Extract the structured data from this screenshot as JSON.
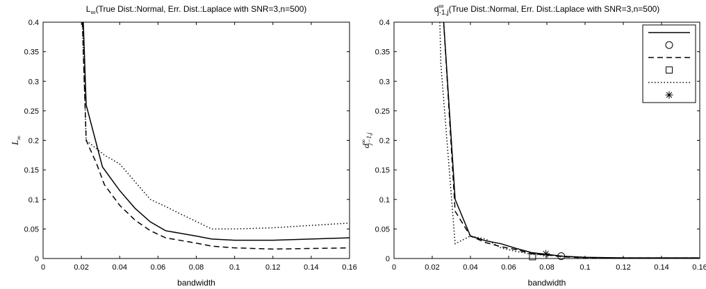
{
  "chart_data": [
    {
      "type": "line",
      "title": {
        "symbol": "L",
        "subscript": "∞",
        "text": "(True Dist.:Normal, Err. Dist.:Laplace with SNR=3,n=500)"
      },
      "y_label": {
        "symbol": "L",
        "subscript": "∞"
      },
      "x_label": "bandwidth",
      "xlim": [
        0,
        0.16
      ],
      "ylim": [
        0,
        0.4
      ],
      "xticks": [
        0,
        0.02,
        0.04,
        0.06,
        0.08,
        0.1,
        0.12,
        0.14,
        0.16
      ],
      "yticks": [
        0,
        0.05,
        0.1,
        0.15,
        0.2,
        0.25,
        0.3,
        0.35,
        0.4
      ],
      "series": [
        {
          "color": "#000000",
          "line": "solid",
          "marker": "none",
          "x": [
            0.021,
            0.0225,
            0.031,
            0.04,
            0.048,
            0.056,
            0.064,
            0.08,
            0.088,
            0.1,
            0.12,
            0.16
          ],
          "values": [
            0.4,
            0.26,
            0.155,
            0.115,
            0.085,
            0.062,
            0.047,
            0.038,
            0.033,
            0.031,
            0.031,
            0.035
          ]
        },
        {
          "color": "#000000",
          "line": "dashed",
          "marker": "none",
          "x": [
            0.0205,
            0.0225,
            0.028,
            0.032,
            0.04,
            0.048,
            0.056,
            0.064,
            0.08,
            0.088,
            0.1,
            0.12,
            0.16
          ],
          "values": [
            0.4,
            0.2,
            0.16,
            0.125,
            0.09,
            0.065,
            0.047,
            0.035,
            0.026,
            0.021,
            0.018,
            0.016,
            0.018
          ]
        },
        {
          "color": "#000000",
          "line": "dotted",
          "marker": "none",
          "x": [
            0.0205,
            0.0225,
            0.032,
            0.04,
            0.048,
            0.056,
            0.064,
            0.072,
            0.088,
            0.1,
            0.12,
            0.16
          ],
          "values": [
            0.4,
            0.2,
            0.175,
            0.16,
            0.13,
            0.1,
            0.088,
            0.075,
            0.05,
            0.05,
            0.052,
            0.06
          ]
        }
      ]
    },
    {
      "type": "line",
      "title": {
        "symbol": "d",
        "superscript": "∞",
        "subscript": "j-1,j",
        "text": "(True Dist.:Normal, Err. Dist.:Laplace with SNR=3,n=500)"
      },
      "y_label": {
        "symbol": "d",
        "superscript": "∞",
        "subscript": "j−1,j"
      },
      "x_label": "bandwidth",
      "xlim": [
        0,
        0.16
      ],
      "ylim": [
        0,
        0.4
      ],
      "xticks": [
        0,
        0.02,
        0.04,
        0.06,
        0.08,
        0.1,
        0.12,
        0.14,
        0.16
      ],
      "yticks": [
        0,
        0.05,
        0.1,
        0.15,
        0.2,
        0.25,
        0.3,
        0.35,
        0.4
      ],
      "legend": "upper right",
      "series": [
        {
          "color": "#000000",
          "line": "solid",
          "marker": "none",
          "x": [
            0.026,
            0.032,
            0.04,
            0.048,
            0.056,
            0.064,
            0.072,
            0.08,
            0.088,
            0.1,
            0.12,
            0.16
          ],
          "values": [
            0.4,
            0.1,
            0.038,
            0.03,
            0.025,
            0.017,
            0.01,
            0.007,
            0.004,
            0.002,
            0.001,
            0.001
          ]
        },
        {
          "color": "#000000",
          "line": "none",
          "marker": "circle",
          "x": [
            0.0875
          ],
          "values": [
            0.004
          ]
        },
        {
          "color": "#000000",
          "line": "dashed",
          "marker": "none",
          "x": [
            0.026,
            0.032,
            0.04,
            0.048,
            0.056,
            0.064,
            0.072,
            0.08,
            0.088,
            0.1,
            0.16
          ],
          "values": [
            0.4,
            0.08,
            0.038,
            0.027,
            0.02,
            0.015,
            0.008,
            0.006,
            0.003,
            0.001,
            0.001
          ]
        },
        {
          "color": "#000000",
          "line": "none",
          "marker": "square",
          "x": [
            0.0725
          ],
          "values": [
            0.003
          ]
        },
        {
          "color": "#000000",
          "line": "dotted",
          "marker": "none",
          "x": [
            0.024,
            0.0245,
            0.032,
            0.04,
            0.048,
            0.056,
            0.064,
            0.072,
            0.08,
            0.1,
            0.16
          ],
          "values": [
            0.4,
            0.33,
            0.025,
            0.038,
            0.033,
            0.018,
            0.012,
            0.007,
            0.006,
            0.001,
            0.001
          ]
        },
        {
          "color": "#000000",
          "line": "none",
          "marker": "star",
          "x": [
            0.0795
          ],
          "values": [
            0.008
          ]
        }
      ]
    }
  ]
}
